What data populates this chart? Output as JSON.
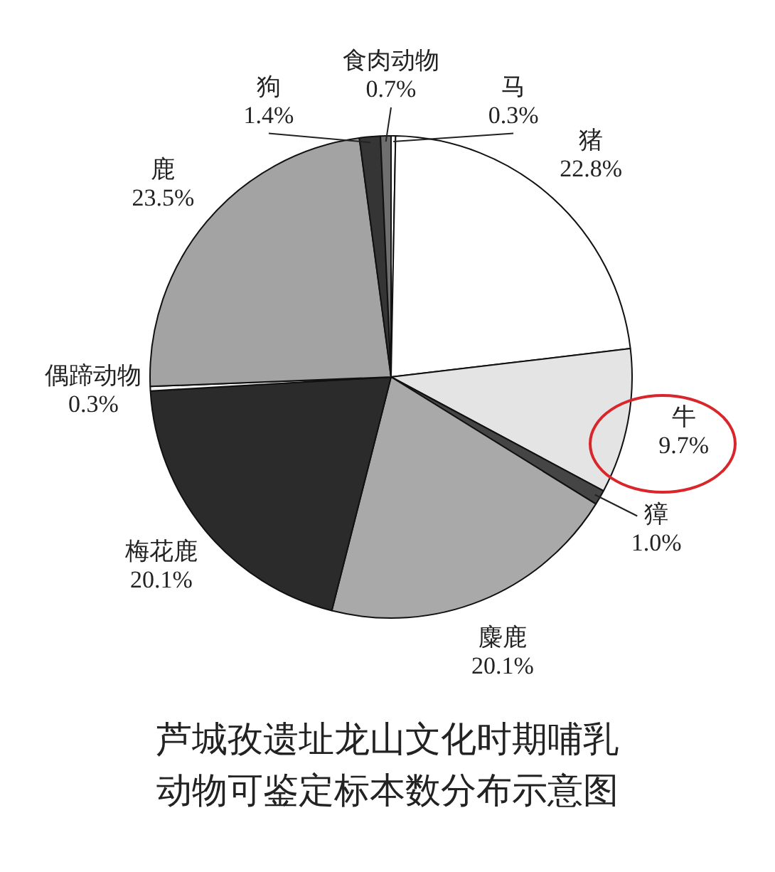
{
  "chart_data": {
    "type": "pie",
    "title": "芦城孜遗址龙山文化时期哺乳动物可鉴定标本数分布示意图",
    "categories": [
      "马",
      "猪",
      "牛",
      "獐",
      "麋鹿",
      "梅花鹿",
      "偶蹄动物",
      "鹿",
      "狗",
      "食肉动物"
    ],
    "values": [
      0.3,
      22.8,
      9.7,
      1.0,
      20.1,
      20.1,
      0.3,
      23.5,
      1.4,
      0.7
    ],
    "value_labels": [
      "0.3%",
      "22.8%",
      "9.7%",
      "1.0%",
      "20.1%",
      "20.1%",
      "0.3%",
      "23.5%",
      "1.4%",
      "0.7%"
    ],
    "colors": [
      "#ffffff",
      "#ffffff",
      "#e4e4e4",
      "#454545",
      "#a9a9a9",
      "#2b2b2b",
      "#f4f4f4",
      "#a3a3a3",
      "#353535",
      "#6f6f6f"
    ],
    "legend": false
  }
}
